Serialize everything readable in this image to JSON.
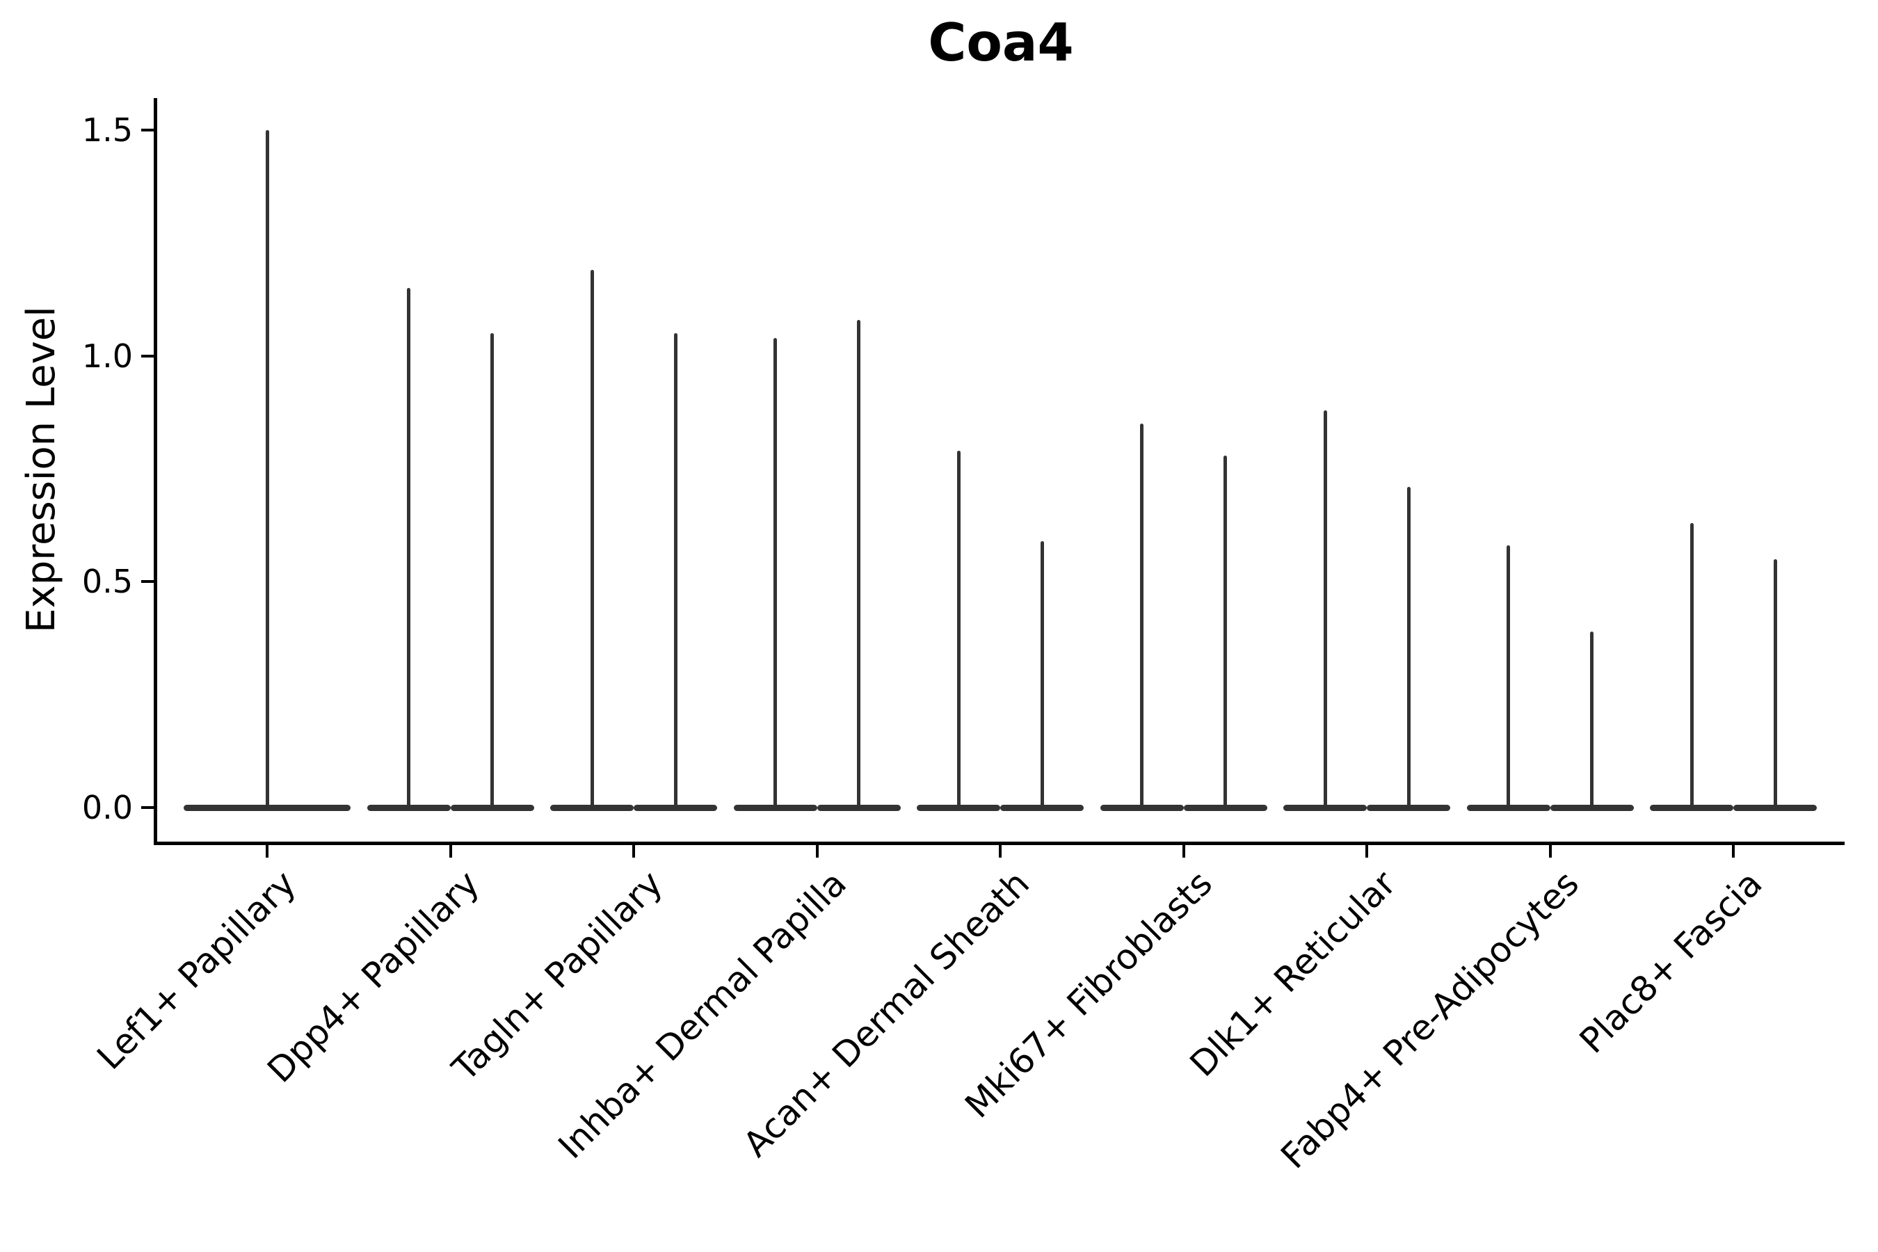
{
  "chart_data": {
    "type": "violin",
    "title": "Coa4",
    "xlabel": "",
    "ylabel": "Expression Level",
    "ylim": [
      -0.08,
      1.57
    ],
    "yticks": [
      0.0,
      0.5,
      1.0,
      1.5
    ],
    "ytick_labels": [
      "0.0",
      "0.5",
      "1.0",
      "1.5"
    ],
    "grid": false,
    "legend": "none",
    "violin_color": "#333333",
    "axis_color": "#000000",
    "note": "Distributions are concentrated at 0 (flat body at y=0) with a thin spike up to the maximum expression value; first category has one full-width violin, the rest have two side-by-side violins",
    "categories": [
      {
        "label": "Lef1+ Papillary",
        "violins": [
          {
            "side": "center",
            "max": 1.5
          }
        ]
      },
      {
        "label": "Dpp4+ Papillary",
        "violins": [
          {
            "side": "left",
            "max": 1.15
          },
          {
            "side": "right",
            "max": 1.05
          }
        ]
      },
      {
        "label": "Tagln+ Papillary",
        "violins": [
          {
            "side": "left",
            "max": 1.19
          },
          {
            "side": "right",
            "max": 1.05
          }
        ]
      },
      {
        "label": "Inhba+ Dermal Papilla",
        "violins": [
          {
            "side": "left",
            "max": 1.04
          },
          {
            "side": "right",
            "max": 1.08
          }
        ]
      },
      {
        "label": "Acan+ Dermal Sheath",
        "violins": [
          {
            "side": "left",
            "max": 0.79
          },
          {
            "side": "right",
            "max": 0.59
          }
        ]
      },
      {
        "label": "Mki67+ Fibroblasts",
        "violins": [
          {
            "side": "left",
            "max": 0.85
          },
          {
            "side": "right",
            "max": 0.78
          }
        ]
      },
      {
        "label": "Dlk1+ Reticular",
        "violins": [
          {
            "side": "left",
            "max": 0.88
          },
          {
            "side": "right",
            "max": 0.71
          }
        ]
      },
      {
        "label": "Fabp4+ Pre-Adipocytes",
        "violins": [
          {
            "side": "left",
            "max": 0.58
          },
          {
            "side": "right",
            "max": 0.39
          }
        ]
      },
      {
        "label": "Plac8+ Fascia",
        "violins": [
          {
            "side": "left",
            "max": 0.63
          },
          {
            "side": "right",
            "max": 0.55
          }
        ]
      }
    ]
  }
}
